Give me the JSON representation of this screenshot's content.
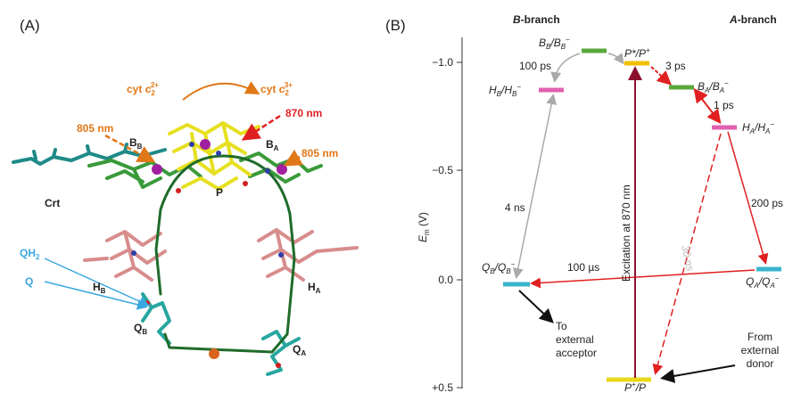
{
  "panel_a": {
    "label": "(A)",
    "cyt_reduced": [
      "cyt ",
      "c",
      "2",
      "2+"
    ],
    "cyt_oxidized": [
      "cyt ",
      "c",
      "2",
      "3+"
    ],
    "laser_870": "870 nm",
    "laser_805_left": "805 nm",
    "laser_805_right": "805 nm",
    "b_b": [
      "B",
      "B"
    ],
    "b_a": [
      "B",
      "A"
    ],
    "p": "P",
    "crt": "Crt",
    "h_b": [
      "H",
      "B"
    ],
    "h_a": [
      "H",
      "A"
    ],
    "qh2": [
      "QH",
      "2"
    ],
    "q": "Q",
    "q_b": [
      "Q",
      "B"
    ],
    "q_a": [
      "Q",
      "A"
    ]
  },
  "panel_b": {
    "label": "(B)",
    "b_branch": [
      "B",
      "-branch"
    ],
    "a_branch": [
      "A",
      "-branch"
    ],
    "axis_label": [
      "E",
      "m",
      " (V)"
    ],
    "yticks": [
      "−1.0",
      "−0.5",
      "0.0",
      "+0.5"
    ],
    "states": {
      "bb": [
        "B",
        "B",
        "/B",
        "B",
        "−"
      ],
      "pstar": [
        "P*/P",
        "+"
      ],
      "ba": [
        "B",
        "A",
        "/B",
        "A",
        "−"
      ],
      "hb": [
        "H",
        "B",
        "/H",
        "B",
        "−"
      ],
      "ha": [
        "H",
        "A",
        "/H",
        "A",
        "−"
      ],
      "qb": [
        "Q",
        "B",
        "/Q",
        "B",
        "−"
      ],
      "qa": [
        "Q",
        "A",
        "/Q",
        "A",
        "−"
      ],
      "pplus": [
        "P",
        "+",
        "/P"
      ]
    },
    "times": {
      "bb_hb": "100 ps",
      "pstar_ba": "3 ps",
      "ba_ha": "1 ps",
      "hb_qb": "4 ns",
      "ha_qa": "200 ps",
      "qa_qb": "100 µs",
      "ha_p": "30 ns"
    },
    "excitation": "Excitation at 870 nm",
    "to_acceptor": [
      "To",
      "external",
      "acceptor"
    ],
    "from_donor": [
      "From",
      "external",
      "donor"
    ]
  }
}
